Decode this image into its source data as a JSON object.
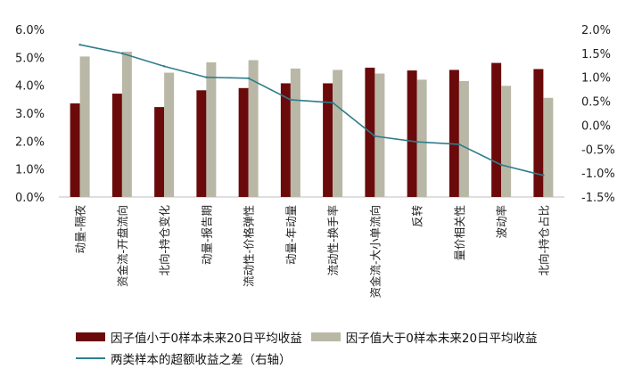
{
  "chart_data": {
    "type": "bar",
    "categories": [
      "动量-隔夜",
      "资金流-开盘流向",
      "北向-持仓变化",
      "动量-报告期",
      "流动性-价格弹性",
      "动量-年动量",
      "流动性-换手率",
      "资金流-大小单流向",
      "反转",
      "量价相关性",
      "波动率",
      "北向-持仓占比"
    ],
    "series": [
      {
        "name": "因子值小于0样本未来20日平均收益",
        "axis": "left",
        "kind": "bar",
        "color": "#6B0A0A",
        "values": [
          3.35,
          3.7,
          3.22,
          3.82,
          3.9,
          4.07,
          4.07,
          4.63,
          4.53,
          4.55,
          4.8,
          4.58
        ]
      },
      {
        "name": "因子值大于0样本未来20日平均收益",
        "axis": "left",
        "kind": "bar",
        "color": "#B9B8A6",
        "values": [
          5.03,
          5.2,
          4.45,
          4.82,
          4.9,
          4.6,
          4.55,
          4.42,
          4.2,
          4.15,
          3.98,
          3.55
        ]
      },
      {
        "name": "两类样本的超额收益之差（右轴）",
        "axis": "right",
        "kind": "line",
        "color": "#2E7D8C",
        "values": [
          1.68,
          1.5,
          1.23,
          1.0,
          0.98,
          0.53,
          0.47,
          -0.23,
          -0.35,
          -0.4,
          -0.83,
          -1.05
        ]
      }
    ],
    "y_left": {
      "min": 0,
      "max": 6,
      "step": 1,
      "ticks": [
        "0.0%",
        "1.0%",
        "2.0%",
        "3.0%",
        "4.0%",
        "5.0%",
        "6.0%"
      ]
    },
    "y_right": {
      "min": -1.5,
      "max": 2.0,
      "step": 0.5,
      "ticks": [
        "-1.5%",
        "-1.0%",
        "-0.5%",
        "0.0%",
        "0.5%",
        "1.0%",
        "1.5%",
        "2.0%"
      ]
    },
    "grid": false,
    "legend_position": "bottom"
  }
}
